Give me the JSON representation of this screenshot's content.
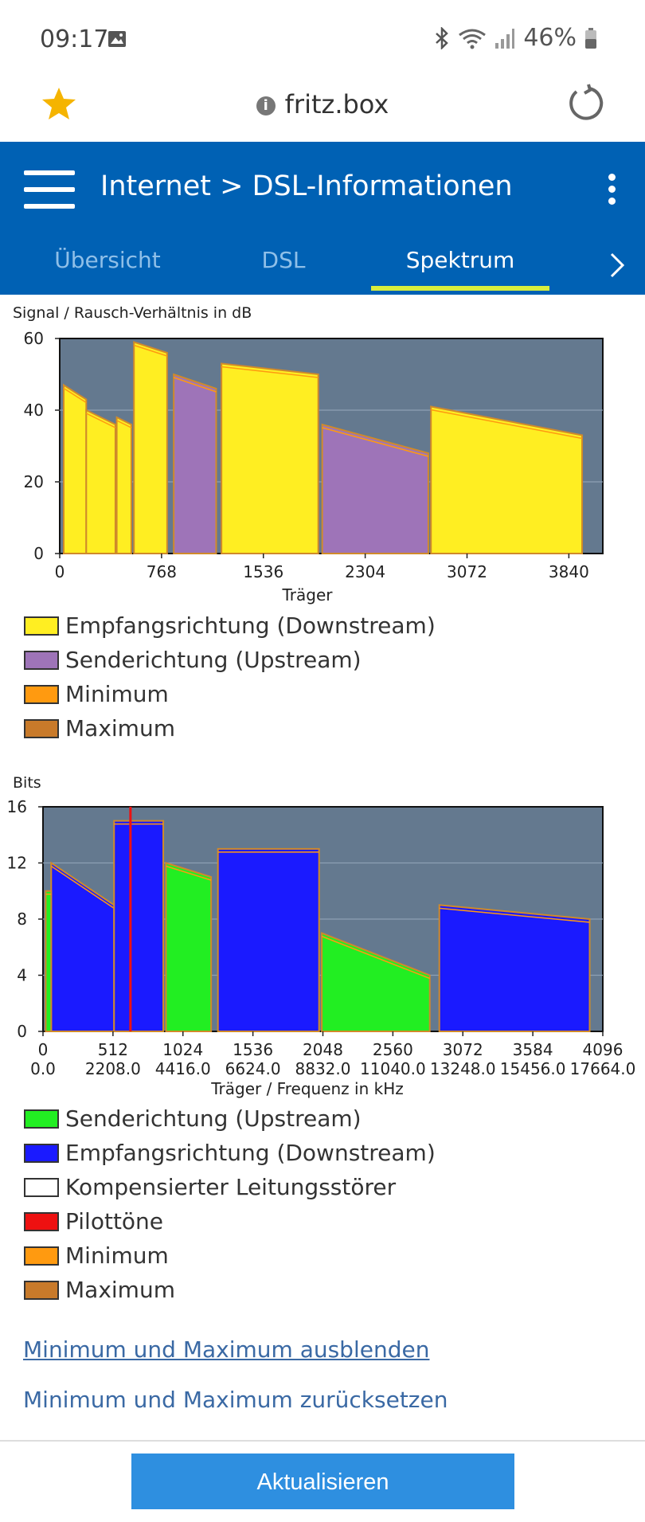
{
  "status_bar": {
    "time": "09:17",
    "battery": "46%"
  },
  "browser": {
    "url": "fritz.box"
  },
  "header": {
    "breadcrumb_section": "Internet",
    "breadcrumb_separator": ">",
    "breadcrumb_page": "DSL-Informationen"
  },
  "tabs": [
    {
      "label": "Übersicht",
      "active": false
    },
    {
      "label": "DSL",
      "active": false
    },
    {
      "label": "Spektrum",
      "active": true
    }
  ],
  "snr_chart": {
    "title": "Signal / Rausch-Verhältnis in dB",
    "xlabel": "Träger",
    "y_ticks": [
      "60",
      "40",
      "20",
      "0"
    ],
    "x_ticks": [
      "0",
      "768",
      "1536",
      "2304",
      "3072",
      "3840"
    ],
    "legend": [
      {
        "label": "Empfangsrichtung (Downstream)",
        "color": "#ffee22"
      },
      {
        "label": "Senderichtung (Upstream)",
        "color": "#9e74b8"
      },
      {
        "label": "Minimum",
        "color": "#ff9a10"
      },
      {
        "label": "Maximum",
        "color": "#c87a2a"
      }
    ]
  },
  "bits_chart": {
    "title": "Bits",
    "xlabel": "Träger / Frequenz in kHz",
    "y_ticks": [
      "16",
      "12",
      "8",
      "4",
      "0"
    ],
    "x_ticks_carrier": [
      "0",
      "512",
      "1024",
      "1536",
      "2048",
      "2560",
      "3072",
      "3584",
      "4096"
    ],
    "x_ticks_freq": [
      "0.0",
      "2208.0",
      "4416.0",
      "6624.0",
      "8832.0",
      "11040.0",
      "13248.0",
      "15456.0",
      "17664.0"
    ],
    "legend": [
      {
        "label": "Senderichtung (Upstream)",
        "color": "#22ee22"
      },
      {
        "label": "Empfangsrichtung (Downstream)",
        "color": "#1a1aff"
      },
      {
        "label": "Kompensierter Leitungsstörer",
        "color": "#ffffff"
      },
      {
        "label": "Pilottöne",
        "color": "#ee1111"
      },
      {
        "label": "Minimum",
        "color": "#ff9a10"
      },
      {
        "label": "Maximum",
        "color": "#c87a2a"
      }
    ]
  },
  "chart_data": [
    {
      "type": "area",
      "title": "Signal / Rausch-Verhältnis in dB",
      "xlabel": "Träger",
      "ylabel": "",
      "xlim": [
        0,
        4096
      ],
      "ylim": [
        0,
        60
      ],
      "grid": true,
      "series": [
        {
          "name": "Empfangsrichtung (Downstream)",
          "segments": [
            {
              "x": [
                30,
                200
              ],
              "y": [
                47,
                43
              ]
            },
            {
              "x": [
                200,
                420
              ],
              "y": [
                40,
                36
              ]
            },
            {
              "x": [
                430,
                540
              ],
              "y": [
                38,
                36
              ]
            },
            {
              "x": [
                560,
                810
              ],
              "y": [
                59,
                56
              ]
            },
            {
              "x": [
                1220,
                1950
              ],
              "y": [
                53,
                50
              ]
            },
            {
              "x": [
                2800,
                3940
              ],
              "y": [
                41,
                33
              ]
            }
          ]
        },
        {
          "name": "Senderichtung (Upstream)",
          "segments": [
            {
              "x": [
                860,
                1180
              ],
              "y": [
                50,
                46
              ]
            },
            {
              "x": [
                1980,
                2780
              ],
              "y": [
                36,
                28
              ]
            }
          ]
        }
      ]
    },
    {
      "type": "area",
      "title": "Bits",
      "xlabel": "Träger / Frequenz in kHz",
      "ylabel": "",
      "xlim": [
        0,
        4096
      ],
      "ylim": [
        0,
        16
      ],
      "grid": true,
      "series": [
        {
          "name": "Empfangsrichtung (Downstream)",
          "segments": [
            {
              "x": [
                60,
                520
              ],
              "y": [
                12,
                9
              ]
            },
            {
              "x": [
                520,
                880
              ],
              "y": [
                15,
                15
              ]
            },
            {
              "x": [
                1280,
                2020
              ],
              "y": [
                13,
                13
              ]
            },
            {
              "x": [
                2900,
                4000
              ],
              "y": [
                9,
                8
              ]
            }
          ]
        },
        {
          "name": "Senderichtung (Upstream)",
          "segments": [
            {
              "x": [
                20,
                60
              ],
              "y": [
                10,
                10
              ]
            },
            {
              "x": [
                900,
                1230
              ],
              "y": [
                12,
                11
              ]
            },
            {
              "x": [
                2040,
                2830
              ],
              "y": [
                7,
                4
              ]
            }
          ]
        },
        {
          "name": "Pilottöne",
          "x": [
            640
          ],
          "y": [
            16
          ]
        }
      ]
    }
  ],
  "links": {
    "hide_minmax": "Minimum und Maximum ausblenden",
    "reset_minmax": "Minimum und Maximum zurücksetzen"
  },
  "button": {
    "refresh": "Aktualisieren"
  }
}
